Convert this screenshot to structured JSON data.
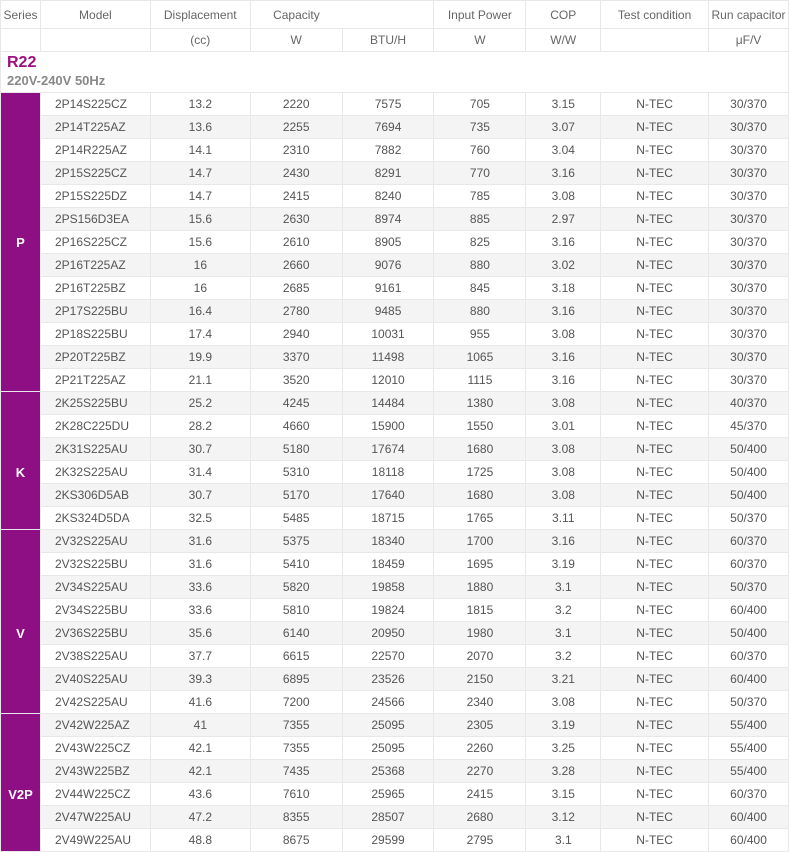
{
  "headers": {
    "series": "Series",
    "model": "Model",
    "displacement": "Displacement",
    "displacement_unit": "(cc)",
    "capacity": "Capacity",
    "capacity_w": "W",
    "capacity_btu": "BTU/H",
    "input_power": "Input Power",
    "input_power_unit": "W",
    "cop": "COP",
    "cop_unit": "W/W",
    "test_condition": "Test condition",
    "run_capacitor": "Run capacitor",
    "run_capacitor_unit": "μF/V"
  },
  "section_title": "R22",
  "voltage": "220V-240V 50Hz",
  "colors": {
    "series_bg": "#8e0e84",
    "title_color": "#9b0f83",
    "alt_row": "#f4f4f4",
    "border": "#e8e8e8",
    "text": "#555"
  },
  "groups": [
    {
      "series": "P",
      "rows": [
        {
          "model": "2P14S225CZ",
          "disp": "13.2",
          "w": "2220",
          "btu": "7575",
          "inp": "705",
          "cop": "3.15",
          "tc": "N-TEC",
          "rc": "30/370"
        },
        {
          "model": "2P14T225AZ",
          "disp": "13.6",
          "w": "2255",
          "btu": "7694",
          "inp": "735",
          "cop": "3.07",
          "tc": "N-TEC",
          "rc": "30/370"
        },
        {
          "model": "2P14R225AZ",
          "disp": "14.1",
          "w": "2310",
          "btu": "7882",
          "inp": "760",
          "cop": "3.04",
          "tc": "N-TEC",
          "rc": "30/370"
        },
        {
          "model": "2P15S225CZ",
          "disp": "14.7",
          "w": "2430",
          "btu": "8291",
          "inp": "770",
          "cop": "3.16",
          "tc": "N-TEC",
          "rc": "30/370"
        },
        {
          "model": "2P15S225DZ",
          "disp": "14.7",
          "w": "2415",
          "btu": "8240",
          "inp": "785",
          "cop": "3.08",
          "tc": "N-TEC",
          "rc": "30/370"
        },
        {
          "model": "2PS156D3EA",
          "disp": "15.6",
          "w": "2630",
          "btu": "8974",
          "inp": "885",
          "cop": "2.97",
          "tc": "N-TEC",
          "rc": "30/370"
        },
        {
          "model": "2P16S225CZ",
          "disp": "15.6",
          "w": "2610",
          "btu": "8905",
          "inp": "825",
          "cop": "3.16",
          "tc": "N-TEC",
          "rc": "30/370"
        },
        {
          "model": "2P16T225AZ",
          "disp": "16",
          "w": "2660",
          "btu": "9076",
          "inp": "880",
          "cop": "3.02",
          "tc": "N-TEC",
          "rc": "30/370"
        },
        {
          "model": "2P16T225BZ",
          "disp": "16",
          "w": "2685",
          "btu": "9161",
          "inp": "845",
          "cop": "3.18",
          "tc": "N-TEC",
          "rc": "30/370"
        },
        {
          "model": "2P17S225BU",
          "disp": "16.4",
          "w": "2780",
          "btu": "9485",
          "inp": "880",
          "cop": "3.16",
          "tc": "N-TEC",
          "rc": "30/370"
        },
        {
          "model": "2P18S225BU",
          "disp": "17.4",
          "w": "2940",
          "btu": "10031",
          "inp": "955",
          "cop": "3.08",
          "tc": "N-TEC",
          "rc": "30/370"
        },
        {
          "model": "2P20T225BZ",
          "disp": "19.9",
          "w": "3370",
          "btu": "11498",
          "inp": "1065",
          "cop": "3.16",
          "tc": "N-TEC",
          "rc": "30/370"
        },
        {
          "model": "2P21T225AZ",
          "disp": "21.1",
          "w": "3520",
          "btu": "12010",
          "inp": "1115",
          "cop": "3.16",
          "tc": "N-TEC",
          "rc": "30/370"
        }
      ]
    },
    {
      "series": "K",
      "rows": [
        {
          "model": "2K25S225BU",
          "disp": "25.2",
          "w": "4245",
          "btu": "14484",
          "inp": "1380",
          "cop": "3.08",
          "tc": "N-TEC",
          "rc": "40/370"
        },
        {
          "model": "2K28C225DU",
          "disp": "28.2",
          "w": "4660",
          "btu": "15900",
          "inp": "1550",
          "cop": "3.01",
          "tc": "N-TEC",
          "rc": "45/370"
        },
        {
          "model": "2K31S225AU",
          "disp": "30.7",
          "w": "5180",
          "btu": "17674",
          "inp": "1680",
          "cop": "3.08",
          "tc": "N-TEC",
          "rc": "50/400"
        },
        {
          "model": "2K32S225AU",
          "disp": "31.4",
          "w": "5310",
          "btu": "18118",
          "inp": "1725",
          "cop": "3.08",
          "tc": "N-TEC",
          "rc": "50/400"
        },
        {
          "model": "2KS306D5AB",
          "disp": "30.7",
          "w": "5170",
          "btu": "17640",
          "inp": "1680",
          "cop": "3.08",
          "tc": "N-TEC",
          "rc": "50/400"
        },
        {
          "model": "2KS324D5DA",
          "disp": "32.5",
          "w": "5485",
          "btu": "18715",
          "inp": "1765",
          "cop": "3.11",
          "tc": "N-TEC",
          "rc": "50/370"
        }
      ]
    },
    {
      "series": "V",
      "rows": [
        {
          "model": "2V32S225AU",
          "disp": "31.6",
          "w": "5375",
          "btu": "18340",
          "inp": "1700",
          "cop": "3.16",
          "tc": "N-TEC",
          "rc": "60/370"
        },
        {
          "model": "2V32S225BU",
          "disp": "31.6",
          "w": "5410",
          "btu": "18459",
          "inp": "1695",
          "cop": "3.19",
          "tc": "N-TEC",
          "rc": "60/370"
        },
        {
          "model": "2V34S225AU",
          "disp": "33.6",
          "w": "5820",
          "btu": "19858",
          "inp": "1880",
          "cop": "3.1",
          "tc": "N-TEC",
          "rc": "50/370"
        },
        {
          "model": "2V34S225BU",
          "disp": "33.6",
          "w": "5810",
          "btu": "19824",
          "inp": "1815",
          "cop": "3.2",
          "tc": "N-TEC",
          "rc": "60/400"
        },
        {
          "model": "2V36S225BU",
          "disp": "35.6",
          "w": "6140",
          "btu": "20950",
          "inp": "1980",
          "cop": "3.1",
          "tc": "N-TEC",
          "rc": "50/400"
        },
        {
          "model": "2V38S225AU",
          "disp": "37.7",
          "w": "6615",
          "btu": "22570",
          "inp": "2070",
          "cop": "3.2",
          "tc": "N-TEC",
          "rc": "60/370"
        },
        {
          "model": "2V40S225AU",
          "disp": "39.3",
          "w": "6895",
          "btu": "23526",
          "inp": "2150",
          "cop": "3.21",
          "tc": "N-TEC",
          "rc": "60/400"
        },
        {
          "model": "2V42S225AU",
          "disp": "41.6",
          "w": "7200",
          "btu": "24566",
          "inp": "2340",
          "cop": "3.08",
          "tc": "N-TEC",
          "rc": "50/370"
        }
      ]
    },
    {
      "series": "V2P",
      "rows": [
        {
          "model": "2V42W225AZ",
          "disp": "41",
          "w": "7355",
          "btu": "25095",
          "inp": "2305",
          "cop": "3.19",
          "tc": "N-TEC",
          "rc": "55/400"
        },
        {
          "model": "2V43W225CZ",
          "disp": "42.1",
          "w": "7355",
          "btu": "25095",
          "inp": "2260",
          "cop": "3.25",
          "tc": "N-TEC",
          "rc": "55/400"
        },
        {
          "model": "2V43W225BZ",
          "disp": "42.1",
          "w": "7435",
          "btu": "25368",
          "inp": "2270",
          "cop": "3.28",
          "tc": "N-TEC",
          "rc": "55/400"
        },
        {
          "model": "2V44W225CZ",
          "disp": "43.6",
          "w": "7610",
          "btu": "25965",
          "inp": "2415",
          "cop": "3.15",
          "tc": "N-TEC",
          "rc": "60/370"
        },
        {
          "model": "2V47W225AU",
          "disp": "47.2",
          "w": "8355",
          "btu": "28507",
          "inp": "2680",
          "cop": "3.12",
          "tc": "N-TEC",
          "rc": "60/400"
        },
        {
          "model": "2V49W225AU",
          "disp": "48.8",
          "w": "8675",
          "btu": "29599",
          "inp": "2795",
          "cop": "3.1",
          "tc": "N-TEC",
          "rc": "60/400"
        }
      ]
    }
  ]
}
